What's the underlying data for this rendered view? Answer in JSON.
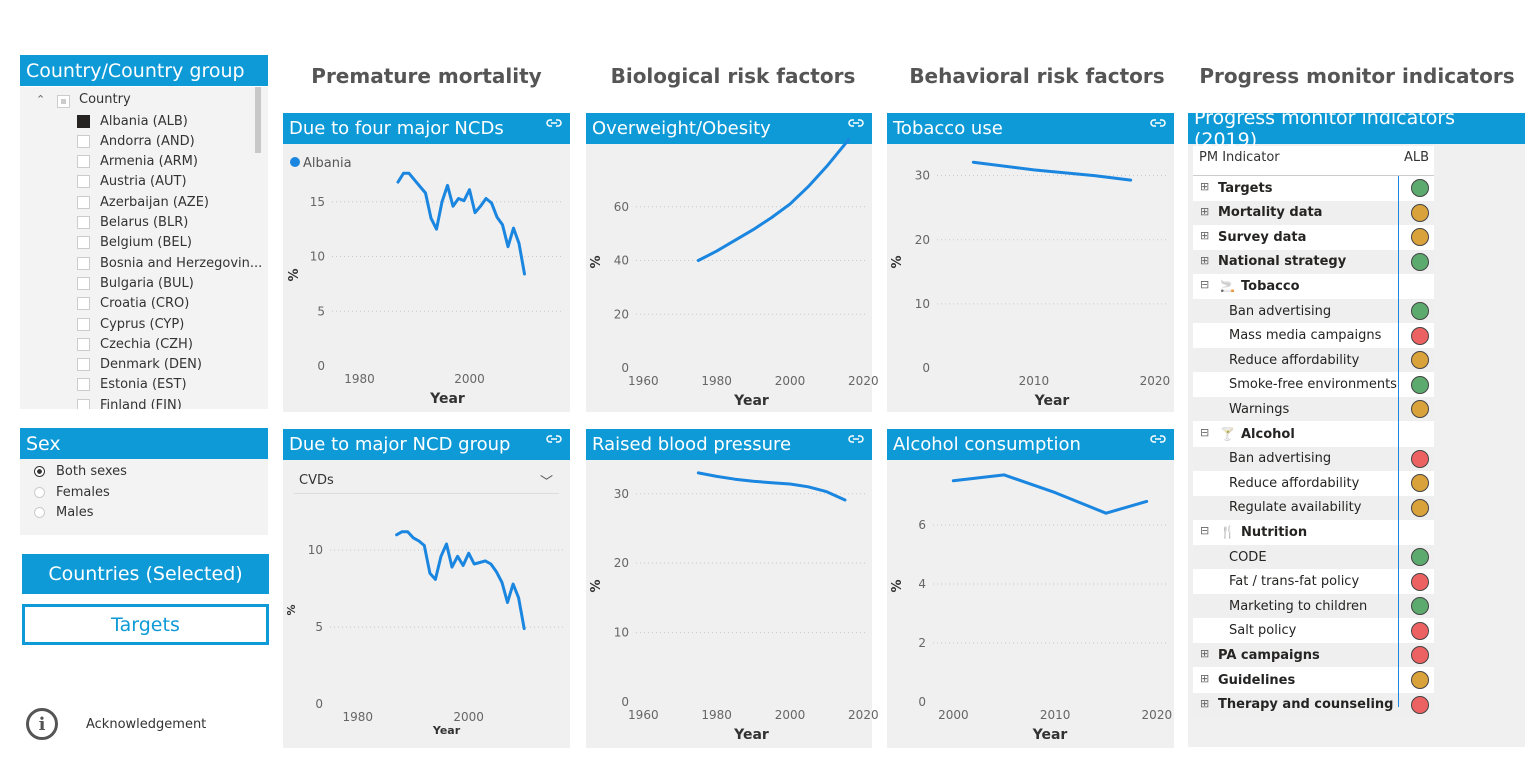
{
  "country_slicer": {
    "title": "Country/Country group",
    "root_label": "Country",
    "items": [
      {
        "label": "Albania (ALB)",
        "checked": true
      },
      {
        "label": "Andorra (AND)",
        "checked": false
      },
      {
        "label": "Armenia (ARM)",
        "checked": false
      },
      {
        "label": "Austria (AUT)",
        "checked": false
      },
      {
        "label": "Azerbaijan (AZE)",
        "checked": false
      },
      {
        "label": "Belarus (BLR)",
        "checked": false
      },
      {
        "label": "Belgium (BEL)",
        "checked": false
      },
      {
        "label": "Bosnia and Herzegovin...",
        "checked": false
      },
      {
        "label": "Bulgaria (BUL)",
        "checked": false
      },
      {
        "label": "Croatia (CRO)",
        "checked": false
      },
      {
        "label": "Cyprus (CYP)",
        "checked": false
      },
      {
        "label": "Czechia (CZH)",
        "checked": false
      },
      {
        "label": "Denmark (DEN)",
        "checked": false
      },
      {
        "label": "Estonia (EST)",
        "checked": false
      },
      {
        "label": "Finland (FIN)",
        "checked": false
      }
    ]
  },
  "sex_slicer": {
    "title": "Sex",
    "options": [
      {
        "label": "Both sexes",
        "selected": true
      },
      {
        "label": "Females",
        "selected": false
      },
      {
        "label": "Males",
        "selected": false
      }
    ]
  },
  "buttons": {
    "countries_selected": "Countries (Selected)",
    "targets": "Targets",
    "acknowledgement": "Acknowledgement"
  },
  "sections": {
    "premature": "Premature mortality",
    "biological": "Biological risk factors",
    "behavioral": "Behavioral risk factors",
    "progress": "Progress monitor indicators"
  },
  "panels": {
    "four_ncds": "Due to four major NCDs",
    "ncd_group": "Due to major NCD group",
    "ncd_group_dropdown": "CVDs",
    "overweight": "Overweight/Obesity",
    "blood_pressure": "Raised blood pressure",
    "tobacco": "Tobacco use",
    "alcohol": "Alcohol consumption",
    "pm_title": "Progress monitor indicators (2019)"
  },
  "colors": {
    "accent": "#0e9ad7",
    "line": "#1a86e0",
    "green": "#5daa6e",
    "orange": "#d9a23b",
    "red": "#ec6262"
  },
  "chart_data": [
    {
      "id": "four_ncds",
      "type": "line",
      "legend": [
        "Albania"
      ],
      "xlabel": "Year",
      "ylabel": "%",
      "xlim": [
        1975,
        2017
      ],
      "ylim": [
        0,
        19
      ],
      "xticks": [
        1980,
        2000
      ],
      "yticks": [
        0,
        5,
        10,
        15
      ],
      "series": [
        {
          "name": "Albania",
          "x": [
            1987,
            1988,
            1989,
            1990,
            1991,
            1992,
            1993,
            1994,
            1995,
            1996,
            1997,
            1998,
            1999,
            2000,
            2001,
            2002,
            2003,
            2004,
            2005,
            2006,
            2007,
            2008,
            2009,
            2010
          ],
          "y": [
            16.8,
            17.6,
            17.6,
            17.0,
            16.4,
            15.8,
            13.5,
            12.5,
            15.0,
            16.5,
            14.6,
            15.3,
            15.1,
            16.1,
            14.0,
            14.6,
            15.3,
            14.9,
            13.6,
            12.9,
            10.9,
            12.6,
            11.2,
            8.4
          ]
        }
      ]
    },
    {
      "id": "ncd_group",
      "type": "line",
      "xlabel": "Year",
      "ylabel": "%",
      "xlim": [
        1975,
        2017
      ],
      "ylim": [
        0,
        13
      ],
      "xticks": [
        1980,
        2000
      ],
      "yticks": [
        0,
        5,
        10
      ],
      "series": [
        {
          "name": "Albania",
          "x": [
            1987,
            1988,
            1989,
            1990,
            1991,
            1992,
            1993,
            1994,
            1995,
            1996,
            1997,
            1998,
            1999,
            2000,
            2001,
            2002,
            2003,
            2004,
            2005,
            2006,
            2007,
            2008,
            2009,
            2010
          ],
          "y": [
            11.0,
            11.2,
            11.2,
            10.8,
            10.6,
            10.3,
            8.5,
            8.1,
            9.6,
            10.4,
            8.9,
            9.6,
            9.0,
            9.8,
            9.1,
            9.2,
            9.3,
            9.1,
            8.6,
            7.9,
            6.6,
            7.8,
            6.9,
            4.9
          ]
        }
      ]
    },
    {
      "id": "overweight",
      "type": "line",
      "xlabel": "Year",
      "ylabel": "%",
      "xlim": [
        1958,
        2021
      ],
      "ylim": [
        0,
        80
      ],
      "xticks": [
        1960,
        1980,
        2000,
        2020
      ],
      "yticks": [
        0,
        20,
        40,
        60
      ],
      "series": [
        {
          "name": "Albania",
          "x": [
            1975,
            1980,
            1985,
            1990,
            1995,
            2000,
            2005,
            2010,
            2016
          ],
          "y": [
            40,
            43.5,
            47.5,
            51.5,
            56,
            61,
            67.5,
            75,
            85
          ]
        }
      ]
    },
    {
      "id": "blood_pressure",
      "type": "line",
      "xlabel": "Year",
      "ylabel": "%",
      "xlim": [
        1958,
        2021
      ],
      "ylim": [
        0,
        34
      ],
      "xticks": [
        1960,
        1980,
        2000,
        2020
      ],
      "yticks": [
        0,
        10,
        20,
        30
      ],
      "series": [
        {
          "name": "Albania",
          "x": [
            1975,
            1980,
            1985,
            1990,
            1995,
            2000,
            2005,
            2010,
            2015
          ],
          "y": [
            33.0,
            32.5,
            32.1,
            31.8,
            31.6,
            31.4,
            31.0,
            30.3,
            29.1
          ]
        }
      ]
    },
    {
      "id": "tobacco",
      "type": "line",
      "xlabel": "Year",
      "ylabel": "%",
      "xlim": [
        2002,
        2021
      ],
      "ylim": [
        0,
        34
      ],
      "xticks": [
        2010,
        2020
      ],
      "yticks": [
        0,
        10,
        20,
        30
      ],
      "series": [
        {
          "name": "Albania",
          "x": [
            2005,
            2010,
            2015,
            2018
          ],
          "y": [
            32.1,
            30.9,
            30.0,
            29.3
          ]
        }
      ]
    },
    {
      "id": "alcohol",
      "type": "line",
      "xlabel": "Year",
      "ylabel": "%",
      "xlim": [
        1998,
        2021
      ],
      "ylim": [
        0,
        8
      ],
      "xticks": [
        2000,
        2010,
        2020
      ],
      "yticks": [
        0,
        2,
        4,
        6
      ],
      "series": [
        {
          "name": "Albania",
          "x": [
            2000,
            2005,
            2010,
            2015,
            2019
          ],
          "y": [
            7.5,
            7.7,
            7.1,
            6.4,
            6.8
          ]
        }
      ]
    }
  ],
  "pm_table": {
    "col_indicator": "PM Indicator",
    "col_country": "ALB",
    "rows": [
      {
        "label": "Targets",
        "level": 0,
        "expander": "plus",
        "bold": true,
        "status": "green"
      },
      {
        "label": "Mortality data",
        "level": 0,
        "expander": "plus",
        "bold": true,
        "status": "orange"
      },
      {
        "label": "Survey data",
        "level": 0,
        "expander": "plus",
        "bold": true,
        "status": "orange"
      },
      {
        "label": "National strategy",
        "level": 0,
        "expander": "plus",
        "bold": true,
        "status": "green"
      },
      {
        "label": "Tobacco",
        "level": 0,
        "expander": "minus",
        "bold": true,
        "status": "",
        "icon": "cigarette-icon"
      },
      {
        "label": "Ban advertising",
        "level": 1,
        "status": "green"
      },
      {
        "label": "Mass media campaigns",
        "level": 1,
        "status": "red"
      },
      {
        "label": "Reduce affordability",
        "level": 1,
        "status": "orange"
      },
      {
        "label": "Smoke-free environments",
        "level": 1,
        "status": "green"
      },
      {
        "label": "Warnings",
        "level": 1,
        "status": "orange"
      },
      {
        "label": "Alcohol",
        "level": 0,
        "expander": "minus",
        "bold": true,
        "status": "",
        "icon": "cocktail-icon"
      },
      {
        "label": "Ban advertising",
        "level": 1,
        "status": "red"
      },
      {
        "label": "Reduce affordability",
        "level": 1,
        "status": "orange"
      },
      {
        "label": "Regulate availability",
        "level": 1,
        "status": "orange"
      },
      {
        "label": "Nutrition",
        "level": 0,
        "expander": "minus",
        "bold": true,
        "status": "",
        "icon": "cutlery-icon"
      },
      {
        "label": "CODE",
        "level": 1,
        "status": "green"
      },
      {
        "label": "Fat / trans-fat policy",
        "level": 1,
        "status": "red"
      },
      {
        "label": "Marketing to children",
        "level": 1,
        "status": "green"
      },
      {
        "label": "Salt policy",
        "level": 1,
        "status": "red"
      },
      {
        "label": "PA campaigns",
        "level": 0,
        "expander": "plus",
        "bold": true,
        "status": "red"
      },
      {
        "label": "Guidelines",
        "level": 0,
        "expander": "plus",
        "bold": true,
        "status": "orange"
      },
      {
        "label": "Therapy and counseling",
        "level": 0,
        "expander": "plus",
        "bold": true,
        "status": "red"
      }
    ]
  }
}
